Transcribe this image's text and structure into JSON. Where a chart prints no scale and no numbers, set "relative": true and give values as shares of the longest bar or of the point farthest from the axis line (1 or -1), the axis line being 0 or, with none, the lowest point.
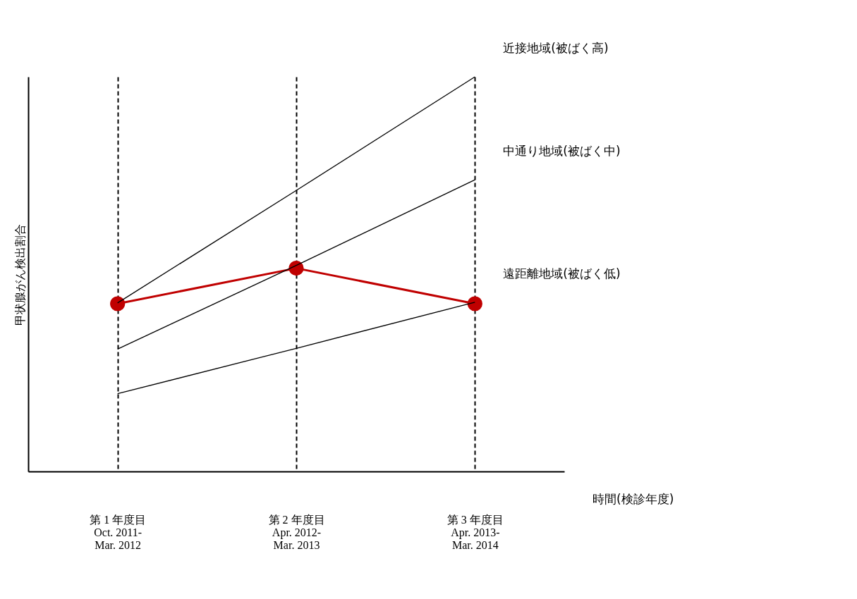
{
  "chart_data": {
    "type": "line",
    "relative": true,
    "ylabel": "甲状腺がん検出割合",
    "annotations": [
      "時間(検診年度)"
    ],
    "categories": [
      "第 1 年度目\nOct. 2011-\nMar. 2012",
      "第 2 年度目\nApr. 2012-\nMar. 2013",
      "第 3 年度目\nApr. 2013-\nMar. 2014"
    ],
    "series": [
      {
        "name": "近接地域(被ばく高)",
        "color": "#000000",
        "marker": "none",
        "values": [
          0.427,
          0.712,
          1.0
        ]
      },
      {
        "name": "中通り地域(被ばく中)",
        "color": "#000000",
        "marker": "none",
        "values": [
          0.31,
          0.522,
          0.739
        ]
      },
      {
        "name": "遠距離地域(被ばく低)",
        "color": "#000000",
        "marker": "none",
        "values": [
          0.197,
          0.312,
          0.429
        ]
      },
      {
        "color": "#c00000",
        "marker": "circle",
        "values": [
          0.425,
          0.515,
          0.425
        ]
      }
    ],
    "grid": "x",
    "line_style": "solid"
  }
}
